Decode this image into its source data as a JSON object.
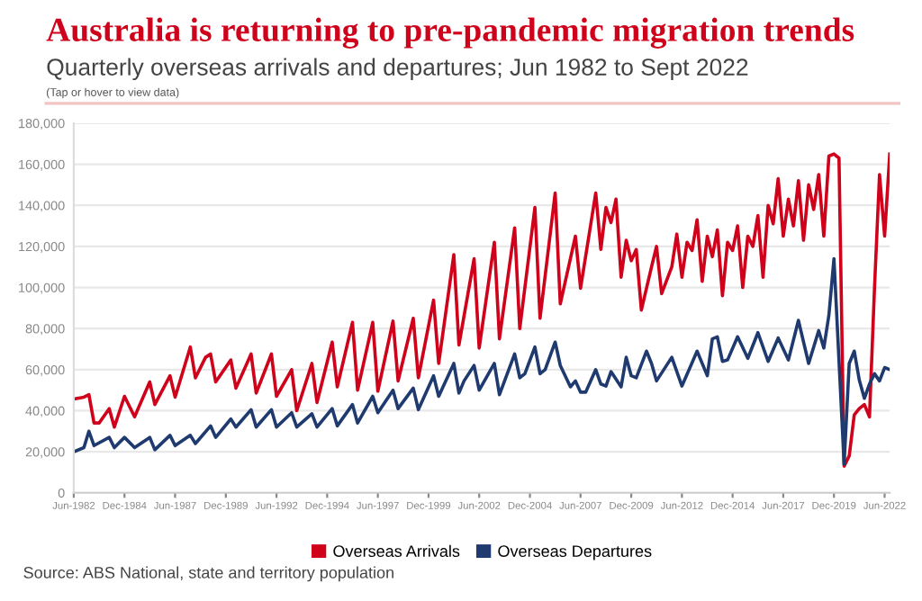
{
  "chart_data": {
    "type": "line",
    "title": "Australia is returning to pre-pandemic migration trends",
    "subtitle": "Quarterly overseas arrivals and departures; Jun 1982 to Sept 2022",
    "annotations": [
      "(Tap or hover to view data)",
      "Source: ABS National, state and territory population"
    ],
    "series": [
      {
        "name": "Overseas Arrivals",
        "color": "#d0021b",
        "x": [
          "1982-06",
          "1982-12",
          "1983-03",
          "1983-06",
          "1983-09",
          "1984-03",
          "1984-06",
          "1984-12",
          "1985-06",
          "1986-03",
          "1986-06",
          "1987-03",
          "1987-06",
          "1988-03",
          "1988-06",
          "1988-12",
          "1989-03",
          "1989-06",
          "1990-03",
          "1990-06",
          "1991-03",
          "1991-06",
          "1992-03",
          "1992-06",
          "1993-03",
          "1993-06",
          "1994-03",
          "1994-06",
          "1995-03",
          "1995-06",
          "1996-03",
          "1996-06",
          "1997-03",
          "1997-06",
          "1998-03",
          "1998-06",
          "1999-03",
          "1999-06",
          "2000-03",
          "2000-06",
          "2001-03",
          "2001-06",
          "2002-03",
          "2002-06",
          "2003-03",
          "2003-06",
          "2004-03",
          "2004-06",
          "2005-03",
          "2005-06",
          "2006-03",
          "2006-06",
          "2007-03",
          "2007-06",
          "2008-03",
          "2008-06",
          "2008-09",
          "2008-12",
          "2009-03",
          "2009-06",
          "2009-09",
          "2009-12",
          "2010-03",
          "2010-06",
          "2010-12",
          "2011-03",
          "2011-06",
          "2011-12",
          "2012-03",
          "2012-06",
          "2012-09",
          "2012-12",
          "2013-03",
          "2013-06",
          "2013-09",
          "2013-12",
          "2014-03",
          "2014-06",
          "2014-09",
          "2014-12",
          "2015-03",
          "2015-06",
          "2015-09",
          "2015-12",
          "2016-03",
          "2016-06",
          "2016-09",
          "2016-12",
          "2017-03",
          "2017-06",
          "2017-09",
          "2017-12",
          "2018-03",
          "2018-06",
          "2018-09",
          "2018-12",
          "2019-03",
          "2019-06",
          "2019-09",
          "2019-12",
          "2020-03",
          "2020-06",
          "2020-09",
          "2020-12",
          "2021-03",
          "2021-06",
          "2021-09",
          "2021-12",
          "2022-03",
          "2022-06",
          "2022-09"
        ],
        "values": [
          45700,
          46600,
          47800,
          34000,
          34000,
          41000,
          32000,
          47000,
          37000,
          54000,
          43000,
          57000,
          46600,
          71000,
          56000,
          66000,
          67600,
          54000,
          64700,
          51000,
          67600,
          48600,
          67600,
          47000,
          60000,
          40000,
          63000,
          44000,
          73400,
          51600,
          83000,
          50000,
          83000,
          49500,
          83600,
          54500,
          85000,
          56000,
          93800,
          63000,
          116000,
          72000,
          114000,
          70500,
          122000,
          75000,
          129000,
          80000,
          139000,
          85000,
          146000,
          92000,
          125000,
          99600,
          146000,
          118500,
          139000,
          131600,
          143000,
          105000,
          123000,
          113000,
          118500,
          89000,
          110000,
          120000,
          97000,
          110000,
          126000,
          105000,
          122000,
          118000,
          133000,
          103000,
          125000,
          115000,
          128000,
          96000,
          122000,
          118000,
          130000,
          100000,
          125000,
          120000,
          135000,
          105000,
          140000,
          131000,
          153000,
          125000,
          143000,
          130000,
          152000,
          123000,
          150000,
          138000,
          155000,
          125000,
          164000,
          165000,
          163000,
          13000,
          18000,
          38000,
          41000,
          43000,
          37000,
          100000,
          155000,
          125000,
          165000
        ]
      },
      {
        "name": "Overseas Departures",
        "color": "#1f3a6e",
        "x": [
          "1982-06",
          "1982-12",
          "1983-03",
          "1983-06",
          "1984-03",
          "1984-06",
          "1984-12",
          "1985-06",
          "1986-03",
          "1986-06",
          "1987-03",
          "1987-06",
          "1988-03",
          "1988-06",
          "1989-03",
          "1989-06",
          "1990-03",
          "1990-06",
          "1991-03",
          "1991-06",
          "1992-03",
          "1992-06",
          "1993-03",
          "1993-06",
          "1994-03",
          "1994-06",
          "1995-03",
          "1995-06",
          "1996-03",
          "1996-06",
          "1997-03",
          "1997-06",
          "1998-03",
          "1998-06",
          "1999-03",
          "1999-06",
          "2000-03",
          "2000-06",
          "2001-03",
          "2001-06",
          "2001-09",
          "2002-03",
          "2002-06",
          "2003-03",
          "2003-06",
          "2004-03",
          "2004-06",
          "2004-09",
          "2005-03",
          "2005-06",
          "2005-09",
          "2006-03",
          "2006-06",
          "2006-12",
          "2007-03",
          "2007-06",
          "2007-09",
          "2008-03",
          "2008-06",
          "2008-09",
          "2008-12",
          "2009-06",
          "2009-09",
          "2009-12",
          "2010-03",
          "2010-09",
          "2010-12",
          "2011-03",
          "2011-12",
          "2012-06",
          "2013-03",
          "2013-09",
          "2013-12",
          "2014-03",
          "2014-06",
          "2014-09",
          "2015-03",
          "2015-09",
          "2016-03",
          "2016-09",
          "2017-03",
          "2017-09",
          "2018-03",
          "2018-09",
          "2019-03",
          "2019-06",
          "2019-09",
          "2019-12",
          "2020-06",
          "2020-09",
          "2020-12",
          "2021-03",
          "2021-06",
          "2021-09",
          "2021-12",
          "2022-03",
          "2022-06",
          "2022-09"
        ],
        "values": [
          20000,
          22000,
          30000,
          23000,
          27000,
          22000,
          27000,
          22000,
          27000,
          21000,
          28000,
          23000,
          28000,
          24000,
          32600,
          27000,
          36000,
          32000,
          40500,
          32000,
          40500,
          32000,
          39000,
          32000,
          38500,
          32000,
          41000,
          32600,
          43000,
          34000,
          47000,
          39000,
          50000,
          41000,
          51000,
          40500,
          57000,
          47000,
          63000,
          48600,
          54500,
          62000,
          50000,
          63000,
          47800,
          67600,
          56000,
          58000,
          71000,
          58000,
          60000,
          73400,
          62000,
          51600,
          54500,
          49000,
          49000,
          60000,
          53000,
          52000,
          59000,
          51600,
          66000,
          57000,
          56000,
          69000,
          63000,
          54500,
          66000,
          52000,
          69000,
          57000,
          75000,
          76000,
          64000,
          64700,
          76000,
          65500,
          78000,
          64000,
          75400,
          64700,
          84000,
          63000,
          79000,
          70500,
          86500,
          114000,
          14000,
          63000,
          69000,
          55000,
          46000,
          53000,
          58000,
          54500,
          61000,
          60000
        ]
      }
    ],
    "xlim": [
      "1982-06",
      "2022-09"
    ],
    "xticks": [
      {
        "value": "1982-06",
        "label": "Jun-1982"
      },
      {
        "value": "1984-12",
        "label": "Dec-1984"
      },
      {
        "value": "1987-06",
        "label": "Jun-1987"
      },
      {
        "value": "1989-12",
        "label": "Dec-1989"
      },
      {
        "value": "1992-06",
        "label": "Jun-1992"
      },
      {
        "value": "1994-12",
        "label": "Dec-1994"
      },
      {
        "value": "1997-06",
        "label": "Jun-1997"
      },
      {
        "value": "1999-12",
        "label": "Dec-1999"
      },
      {
        "value": "2002-06",
        "label": "Jun-2002"
      },
      {
        "value": "2004-12",
        "label": "Dec-2004"
      },
      {
        "value": "2007-06",
        "label": "Jun-2007"
      },
      {
        "value": "2009-12",
        "label": "Dec-2009"
      },
      {
        "value": "2012-06",
        "label": "Jun-2012"
      },
      {
        "value": "2014-12",
        "label": "Dec-2014"
      },
      {
        "value": "2017-06",
        "label": "Jun-2017"
      },
      {
        "value": "2019-12",
        "label": "Dec-2019"
      },
      {
        "value": "2022-06",
        "label": "Jun-2022"
      }
    ],
    "ylim": [
      0,
      180000
    ],
    "yticks": [
      0,
      {
        "value": 20000,
        "label": "20,000"
      },
      {
        "value": 40000,
        "label": "40,000"
      },
      {
        "value": 60000,
        "label": "60,000"
      },
      {
        "value": 80000,
        "label": "80,000"
      },
      {
        "value": 100000,
        "label": "100,000"
      },
      {
        "value": 120000,
        "label": "120,000"
      },
      {
        "value": 140000,
        "label": "140,000"
      },
      {
        "value": 160000,
        "label": "160,000"
      },
      {
        "value": 180000,
        "label": "180,000"
      }
    ],
    "grid": "y",
    "legend": "bottom",
    "marker": "none",
    "line_style": "solid"
  }
}
